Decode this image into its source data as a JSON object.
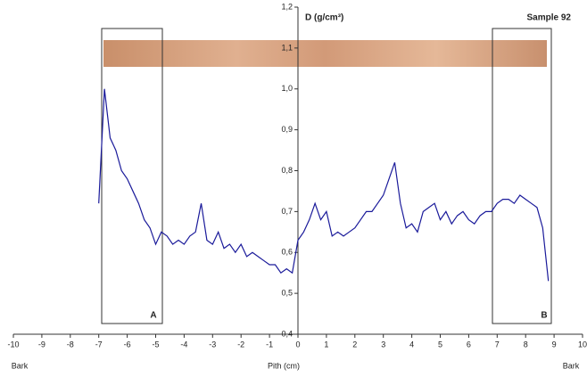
{
  "chart_data": {
    "type": "line",
    "y_axis_label": "D (g/cm³)",
    "title": "Sample 92",
    "x_axis_label": "Pith (cm)",
    "annotations": [
      "A",
      "B"
    ],
    "left_label": "Bark",
    "right_label": "Bark",
    "x": [
      -7.0,
      -6.8,
      -6.6,
      -6.4,
      -6.2,
      -6.0,
      -5.8,
      -5.6,
      -5.4,
      -5.2,
      -5.0,
      -4.8,
      -4.6,
      -4.4,
      -4.2,
      -4.0,
      -3.8,
      -3.6,
      -3.4,
      -3.2,
      -3.0,
      -2.8,
      -2.6,
      -2.4,
      -2.2,
      -2.0,
      -1.8,
      -1.6,
      -1.4,
      -1.2,
      -1.0,
      -0.8,
      -0.6,
      -0.4,
      -0.2,
      0.0,
      0.2,
      0.4,
      0.6,
      0.8,
      1.0,
      1.2,
      1.4,
      1.6,
      1.8,
      2.0,
      2.2,
      2.4,
      2.6,
      2.8,
      3.0,
      3.2,
      3.4,
      3.6,
      3.8,
      4.0,
      4.2,
      4.4,
      4.6,
      4.8,
      5.0,
      5.2,
      5.4,
      5.6,
      5.8,
      6.0,
      6.2,
      6.4,
      6.6,
      6.8,
      7.0,
      7.2,
      7.4,
      7.6,
      7.8,
      8.0,
      8.2,
      8.4,
      8.6,
      8.8
    ],
    "series": [
      {
        "color": "#1a1a9a",
        "values": [
          0.72,
          1.0,
          0.88,
          0.85,
          0.8,
          0.78,
          0.75,
          0.72,
          0.68,
          0.66,
          0.62,
          0.65,
          0.64,
          0.62,
          0.63,
          0.62,
          0.64,
          0.65,
          0.72,
          0.63,
          0.62,
          0.65,
          0.61,
          0.62,
          0.6,
          0.62,
          0.59,
          0.6,
          0.59,
          0.58,
          0.57,
          0.57,
          0.55,
          0.56,
          0.55,
          0.63,
          0.65,
          0.68,
          0.72,
          0.68,
          0.7,
          0.64,
          0.65,
          0.64,
          0.65,
          0.66,
          0.68,
          0.7,
          0.7,
          0.72,
          0.74,
          0.78,
          0.82,
          0.72,
          0.66,
          0.67,
          0.65,
          0.7,
          0.71,
          0.72,
          0.68,
          0.7,
          0.67,
          0.69,
          0.7,
          0.68,
          0.67,
          0.69,
          0.7,
          0.7,
          0.72,
          0.73,
          0.73,
          0.72,
          0.74,
          0.73,
          0.72,
          0.71,
          0.66,
          0.53
        ]
      }
    ],
    "xlim": [
      -10,
      10
    ],
    "ylim": [
      0.4,
      1.2
    ],
    "xticks": [
      -10,
      -9,
      -8,
      -7,
      -6,
      -5,
      -4,
      -3,
      -2,
      -1,
      0,
      1,
      2,
      3,
      4,
      5,
      6,
      7,
      8,
      9,
      10
    ],
    "yticks": [
      {
        "value": 0.4,
        "label": "0,4"
      },
      {
        "value": 0.5,
        "label": "0,5"
      },
      {
        "value": 0.6,
        "label": "0,6"
      },
      {
        "value": 0.7,
        "label": "0,7"
      },
      {
        "value": 0.8,
        "label": "0,8"
      },
      {
        "value": 0.9,
        "label": "0,9"
      },
      {
        "value": 1.0,
        "label": "1,0"
      },
      {
        "value": 1.1,
        "label": "1,1"
      },
      {
        "value": 1.2,
        "label": "1,2"
      }
    ]
  }
}
